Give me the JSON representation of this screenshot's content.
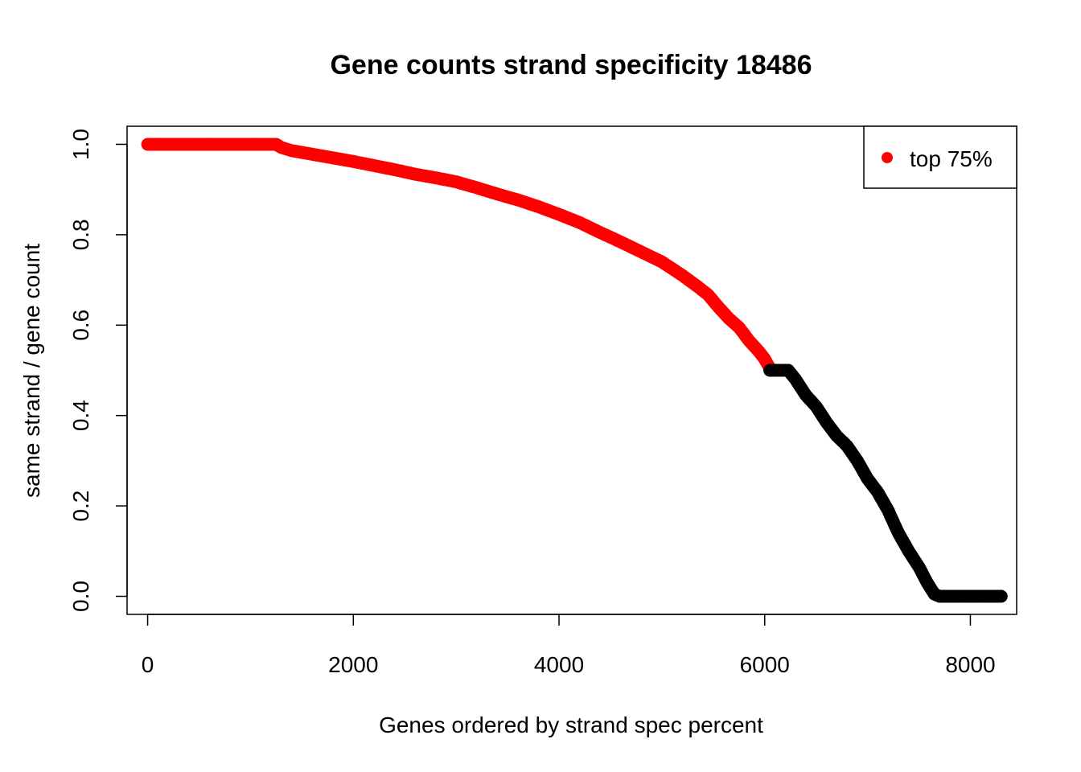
{
  "chart_data": {
    "type": "scatter",
    "title": "Gene counts strand specificity 18486",
    "xlabel": "Genes ordered by strand spec percent",
    "ylabel": "same strand / gene count",
    "xlim": [
      -200,
      8450
    ],
    "ylim": [
      -0.04,
      1.04
    ],
    "x_ticks": [
      0,
      2000,
      4000,
      6000,
      8000
    ],
    "x_tick_labels": [
      "0",
      "2000",
      "4000",
      "6000",
      "8000"
    ],
    "y_ticks": [
      0.0,
      0.2,
      0.4,
      0.6,
      0.8,
      1.0
    ],
    "y_tick_labels": [
      "0.0",
      "0.2",
      "0.4",
      "0.6",
      "0.8",
      "1.0"
    ],
    "grid": false,
    "legend": {
      "position": "top-right",
      "entries": [
        {
          "label": "top 75%",
          "color": "#ff0000"
        }
      ]
    },
    "series": [
      {
        "name": "top 75%",
        "color": "#ff0000",
        "points": [
          [
            0,
            1.0
          ],
          [
            600,
            1.0
          ],
          [
            1200,
            1.0
          ],
          [
            1250,
            1.0
          ],
          [
            1300,
            0.993
          ],
          [
            1400,
            0.986
          ],
          [
            1600,
            0.978
          ],
          [
            1800,
            0.97
          ],
          [
            2000,
            0.962
          ],
          [
            2200,
            0.953
          ],
          [
            2400,
            0.944
          ],
          [
            2600,
            0.934
          ],
          [
            2800,
            0.926
          ],
          [
            3000,
            0.917
          ],
          [
            3200,
            0.904
          ],
          [
            3400,
            0.89
          ],
          [
            3600,
            0.877
          ],
          [
            3800,
            0.862
          ],
          [
            4000,
            0.845
          ],
          [
            4200,
            0.827
          ],
          [
            4400,
            0.805
          ],
          [
            4600,
            0.784
          ],
          [
            4800,
            0.762
          ],
          [
            5000,
            0.74
          ],
          [
            5200,
            0.71
          ],
          [
            5350,
            0.685
          ],
          [
            5450,
            0.667
          ],
          [
            5550,
            0.64
          ],
          [
            5650,
            0.615
          ],
          [
            5750,
            0.595
          ],
          [
            5850,
            0.565
          ],
          [
            5950,
            0.54
          ],
          [
            6000,
            0.525
          ],
          [
            6050,
            0.505
          ]
        ]
      },
      {
        "name": "",
        "color": "#000000",
        "points": [
          [
            6050,
            0.5
          ],
          [
            6150,
            0.5
          ],
          [
            6230,
            0.5
          ],
          [
            6300,
            0.48
          ],
          [
            6400,
            0.445
          ],
          [
            6500,
            0.42
          ],
          [
            6600,
            0.385
          ],
          [
            6700,
            0.355
          ],
          [
            6800,
            0.333
          ],
          [
            6900,
            0.3
          ],
          [
            7000,
            0.26
          ],
          [
            7100,
            0.23
          ],
          [
            7200,
            0.19
          ],
          [
            7300,
            0.14
          ],
          [
            7400,
            0.1
          ],
          [
            7500,
            0.065
          ],
          [
            7580,
            0.03
          ],
          [
            7650,
            0.005
          ],
          [
            7700,
            0.0
          ],
          [
            8000,
            0.0
          ],
          [
            8300,
            0.0
          ]
        ]
      }
    ]
  }
}
